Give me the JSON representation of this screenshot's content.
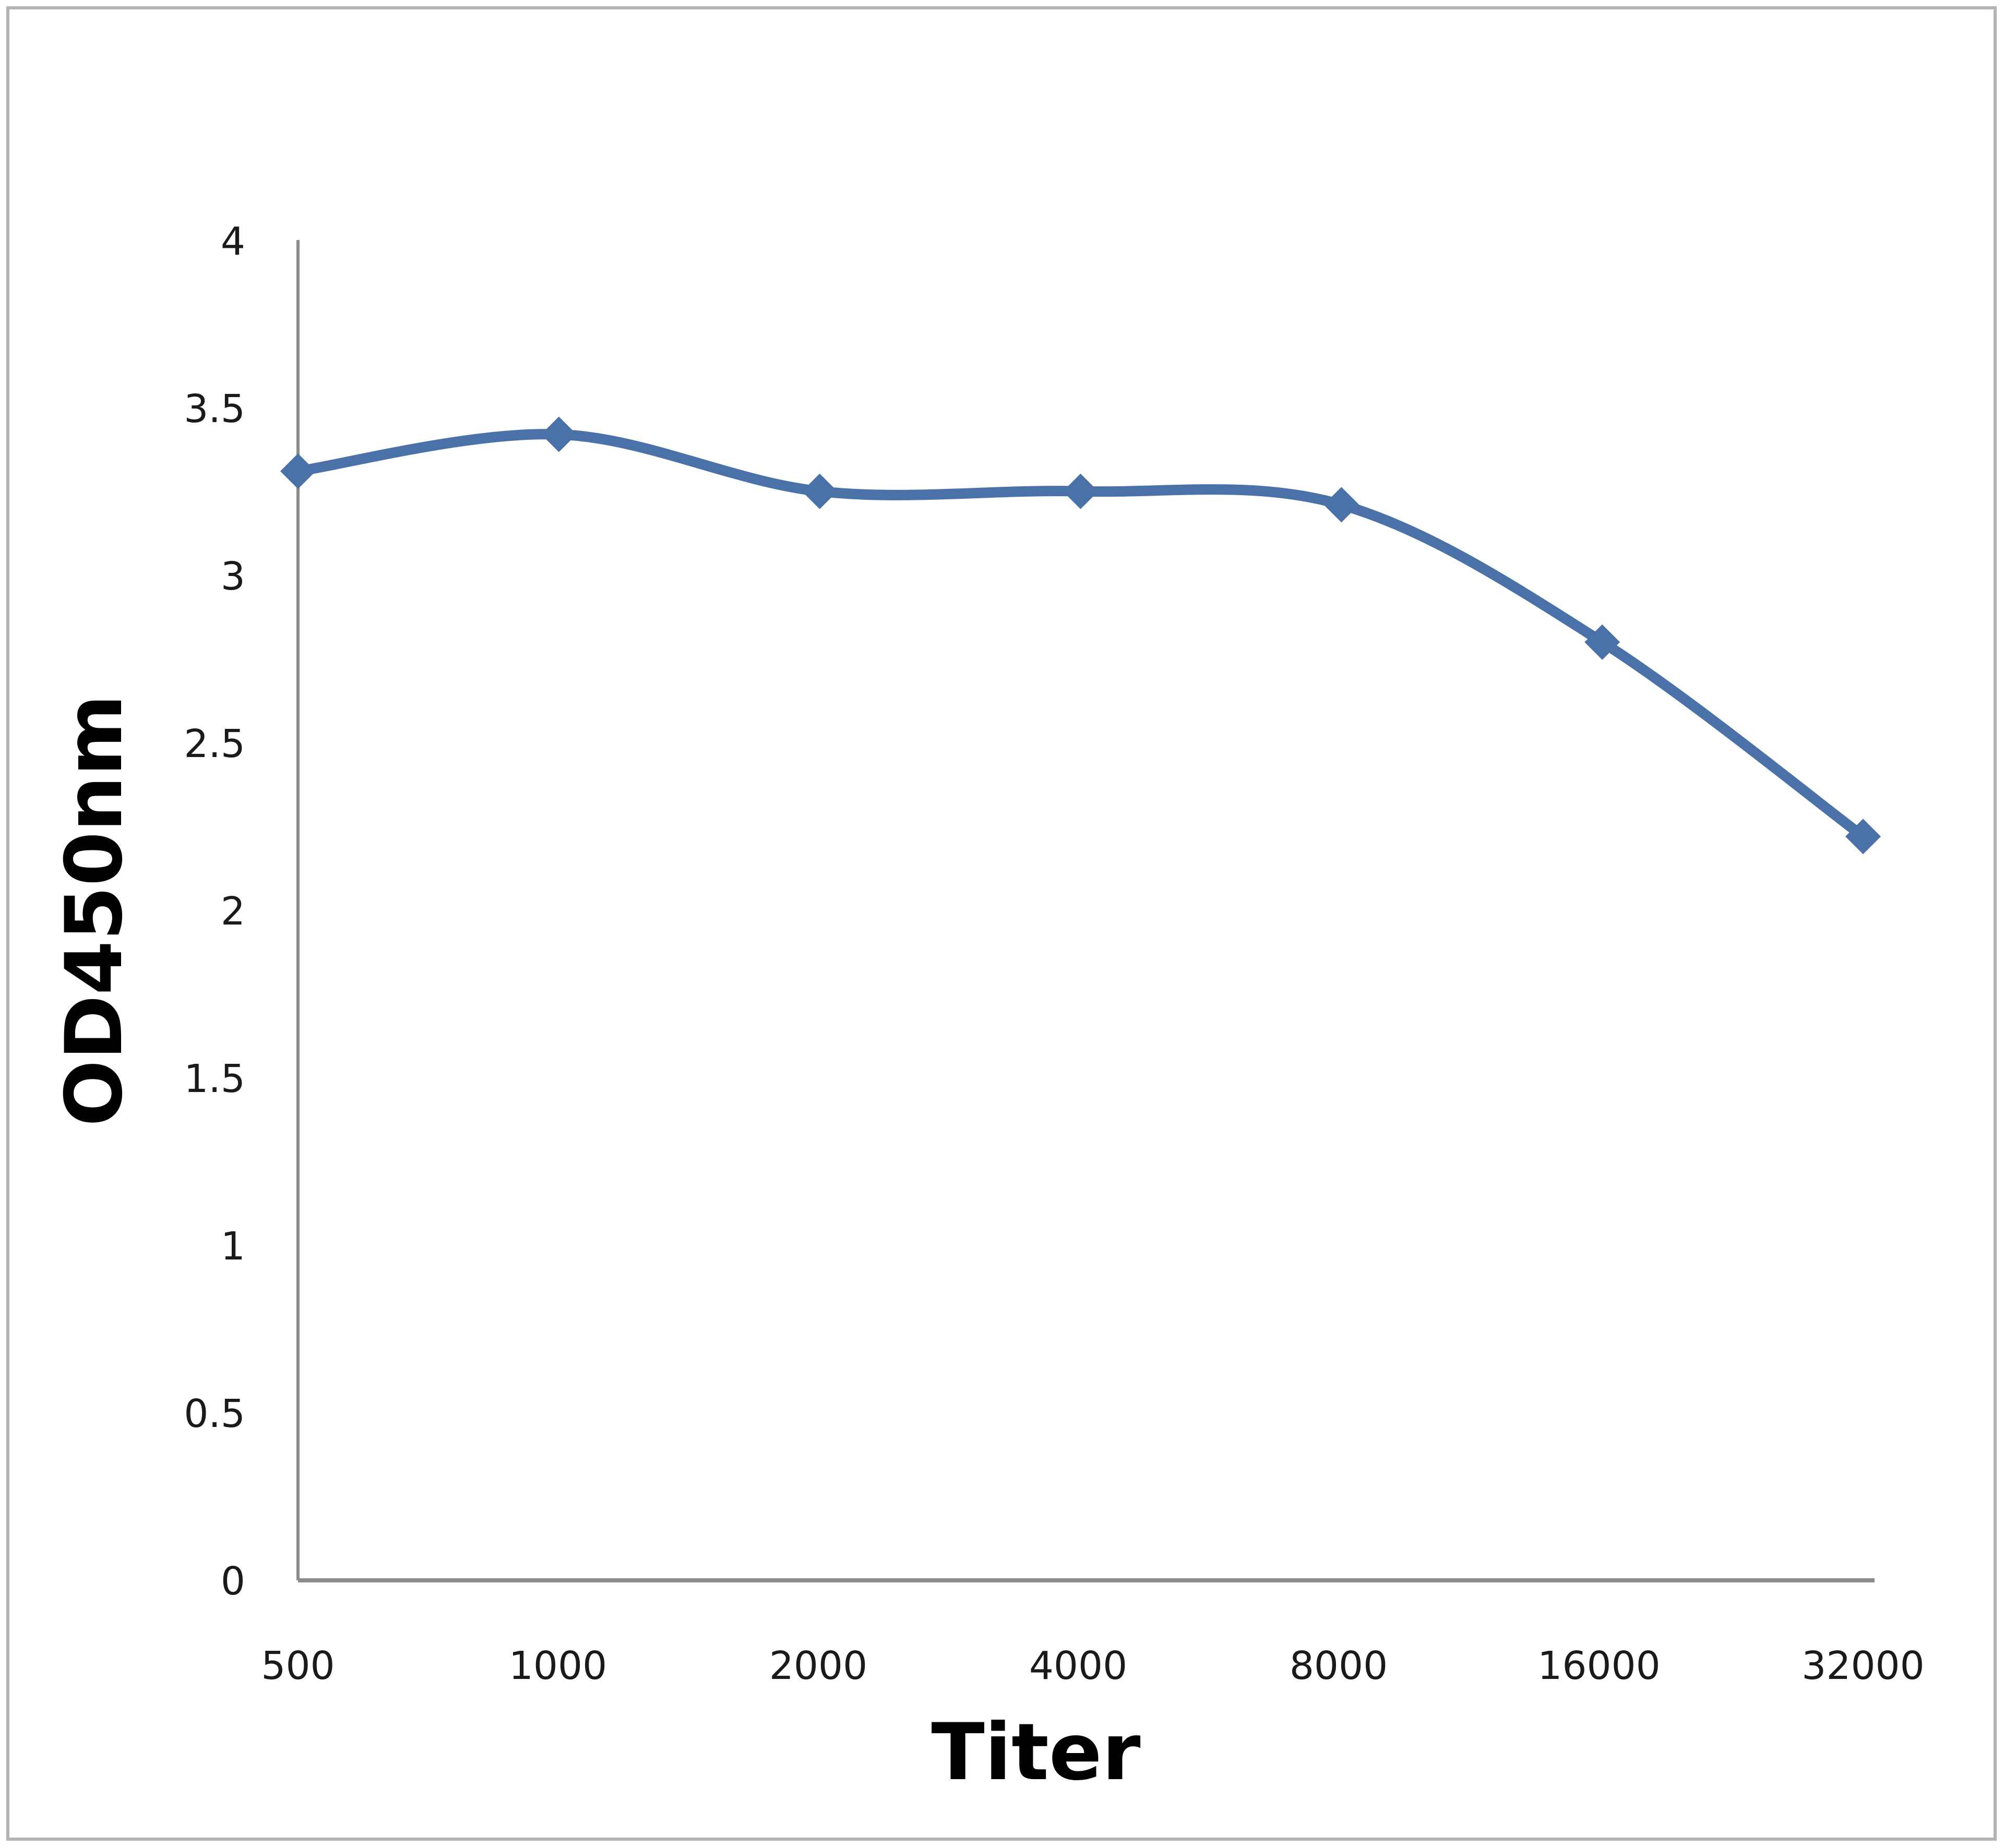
{
  "chart_data": {
    "type": "line",
    "title": "",
    "xlabel": "Titer",
    "ylabel": "OD450nm",
    "categories": [
      "500",
      "1000",
      "2000",
      "4000",
      "8000",
      "16000",
      "32000"
    ],
    "series": [
      {
        "name": "OD450nm",
        "values": [
          3.31,
          3.42,
          3.25,
          3.25,
          3.21,
          2.8,
          2.22
        ],
        "color": "#4a72a8",
        "marker": "diamond",
        "smoothed": true
      }
    ],
    "yticks": [
      "0",
      "0.5",
      "1",
      "1.5",
      "2",
      "2.5",
      "3",
      "3.5",
      "4"
    ],
    "ylim": [
      0,
      4
    ],
    "grid": false,
    "legend": "none"
  },
  "colors": {
    "line": "#4a72a8",
    "axis": "#8c8c8c",
    "frame": "#b4b4b4"
  }
}
